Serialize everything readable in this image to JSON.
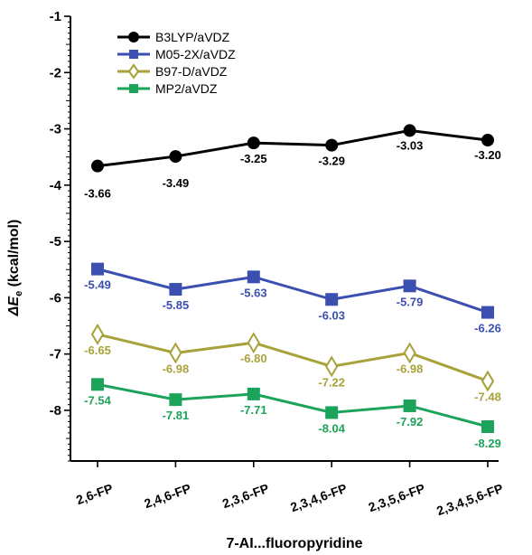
{
  "chart_data": {
    "type": "line",
    "xlabel": "7-AI...fluoropyridine",
    "ylabel_symbol": "ΔE",
    "ylabel_subscript": "e",
    "ylabel_unit": " (kcal/mol)",
    "ylim": [
      -8.9,
      -1
    ],
    "yticks": [
      "-1",
      "-2",
      "-3",
      "-4",
      "-5",
      "-6",
      "-7",
      "-8"
    ],
    "categories": [
      "2,6-FP",
      "2,4,6-FP",
      "2,3,6-FP",
      "2,3,4,6-FP",
      "2,3,5,6-FP",
      "2,3,4,5,6-FP"
    ],
    "legend_position": "top-left",
    "series": [
      {
        "name": "B3LYP/aVDZ",
        "color": "#000000",
        "marker": "circle",
        "values": [
          -3.66,
          -3.49,
          -3.25,
          -3.29,
          -3.03,
          -3.2
        ],
        "labels": [
          "-3.66",
          "-3.49",
          "-3.25",
          "-3.29",
          "-3.03",
          "-3.20"
        ]
      },
      {
        "name": "M05-2X/aVDZ",
        "color": "#3a4fb0",
        "marker": "square",
        "values": [
          -5.49,
          -5.85,
          -5.63,
          -6.03,
          -5.79,
          -6.26
        ],
        "labels": [
          "-5.49",
          "-5.85",
          "-5.63",
          "-6.03",
          "-5.79",
          "-6.26"
        ]
      },
      {
        "name": "B97-D/aVDZ",
        "color": "#a8a23a",
        "marker": "diamond-open",
        "values": [
          -6.65,
          -6.98,
          -6.8,
          -7.22,
          -6.98,
          -7.48
        ],
        "labels": [
          "-6.65",
          "-6.98",
          "-6.80",
          "-7.22",
          "-6.98",
          "-7.48"
        ]
      },
      {
        "name": "MP2/aVDZ",
        "color": "#1ca35a",
        "marker": "square",
        "values": [
          -7.54,
          -7.81,
          -7.71,
          -8.04,
          -7.92,
          -8.29
        ],
        "labels": [
          "-7.54",
          "-7.81",
          "-7.71",
          "-8.04",
          "-7.92",
          "-8.29"
        ]
      }
    ]
  }
}
